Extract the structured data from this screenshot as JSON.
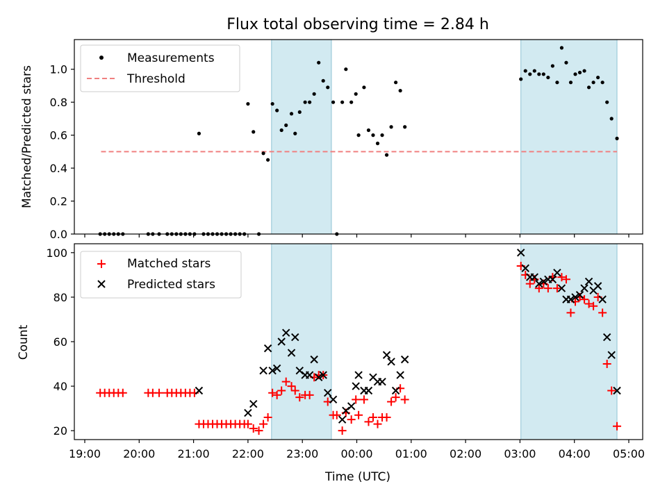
{
  "title": "Flux total observing time = 2.84 h",
  "chart_data": [
    {
      "type": "scatter",
      "panel": "top",
      "title": "Flux total observing time = 2.84 h",
      "xlabel": "",
      "ylabel": "Matched/Predicted stars",
      "xlim": [
        "19:00",
        "05:15"
      ],
      "ylim": [
        0,
        1.18
      ],
      "yticks": [
        0.0,
        0.2,
        0.4,
        0.6,
        0.8,
        1.0
      ],
      "ytick_labels": [
        "0.0",
        "0.2",
        "0.4",
        "0.6",
        "0.8",
        "1.0"
      ],
      "legend": {
        "position": "top-left",
        "entries": [
          "Measurements",
          "Threshold"
        ]
      },
      "shaded_intervals": [
        [
          "22:26",
          "23:32"
        ],
        [
          "03:01",
          "04:47"
        ]
      ],
      "threshold": {
        "name": "Threshold",
        "value": 0.5,
        "x_range": [
          "19:18",
          "04:47"
        ],
        "color": "#f08080"
      },
      "series": [
        {
          "name": "Measurements",
          "color": "#000000",
          "points": [
            [
              "19:17",
              0
            ],
            [
              "19:22",
              0
            ],
            [
              "19:27",
              0
            ],
            [
              "19:32",
              0
            ],
            [
              "19:37",
              0
            ],
            [
              "19:42",
              0
            ],
            [
              "20:10",
              0
            ],
            [
              "20:15",
              0
            ],
            [
              "20:22",
              0
            ],
            [
              "20:31",
              0
            ],
            [
              "20:36",
              0
            ],
            [
              "20:41",
              0
            ],
            [
              "20:46",
              0
            ],
            [
              "20:51",
              0
            ],
            [
              "20:56",
              0
            ],
            [
              "21:01",
              0
            ],
            [
              "21:06",
              0.61
            ],
            [
              "21:11",
              0
            ],
            [
              "21:16",
              0
            ],
            [
              "21:21",
              0
            ],
            [
              "21:26",
              0
            ],
            [
              "21:31",
              0
            ],
            [
              "21:36",
              0
            ],
            [
              "21:41",
              0
            ],
            [
              "21:46",
              0
            ],
            [
              "21:51",
              0
            ],
            [
              "21:56",
              0
            ],
            [
              "22:00",
              0.79
            ],
            [
              "22:06",
              0.62
            ],
            [
              "22:12",
              0
            ],
            [
              "22:17",
              0.49
            ],
            [
              "22:22",
              0.45
            ],
            [
              "22:27",
              0.79
            ],
            [
              "22:32",
              0.75
            ],
            [
              "22:37",
              0.63
            ],
            [
              "22:42",
              0.66
            ],
            [
              "22:48",
              0.73
            ],
            [
              "22:52",
              0.61
            ],
            [
              "22:57",
              0.74
            ],
            [
              "23:03",
              0.8
            ],
            [
              "23:08",
              0.8
            ],
            [
              "23:13",
              0.85
            ],
            [
              "23:18",
              1.04
            ],
            [
              "23:23",
              0.93
            ],
            [
              "23:28",
              0.89
            ],
            [
              "23:34",
              0.8
            ],
            [
              "23:38",
              0
            ],
            [
              "23:44",
              0.8
            ],
            [
              "23:48",
              1.0
            ],
            [
              "23:54",
              0.8
            ],
            [
              "23:59",
              0.85
            ],
            [
              "00:02",
              0.6
            ],
            [
              "00:08",
              0.89
            ],
            [
              "00:13",
              0.63
            ],
            [
              "00:18",
              0.6
            ],
            [
              "00:23",
              0.55
            ],
            [
              "00:28",
              0.6
            ],
            [
              "00:33",
              0.48
            ],
            [
              "00:38",
              0.65
            ],
            [
              "00:43",
              0.92
            ],
            [
              "00:48",
              0.87
            ],
            [
              "00:53",
              0.65
            ],
            [
              "03:01",
              0.94
            ],
            [
              "03:06",
              0.99
            ],
            [
              "03:11",
              0.97
            ],
            [
              "03:16",
              0.99
            ],
            [
              "03:21",
              0.97
            ],
            [
              "03:26",
              0.97
            ],
            [
              "03:31",
              0.95
            ],
            [
              "03:36",
              1.02
            ],
            [
              "03:41",
              0.92
            ],
            [
              "03:46",
              1.13
            ],
            [
              "03:51",
              1.04
            ],
            [
              "03:56",
              0.92
            ],
            [
              "04:01",
              0.97
            ],
            [
              "04:06",
              0.98
            ],
            [
              "04:11",
              0.99
            ],
            [
              "04:16",
              0.89
            ],
            [
              "04:21",
              0.92
            ],
            [
              "04:26",
              0.95
            ],
            [
              "04:31",
              0.92
            ],
            [
              "04:36",
              0.8
            ],
            [
              "04:41",
              0.7
            ],
            [
              "04:47",
              0.58
            ]
          ]
        }
      ]
    },
    {
      "type": "scatter",
      "panel": "bottom",
      "xlabel": "Time (UTC)",
      "ylabel": "Count",
      "xlim": [
        "19:00",
        "05:15"
      ],
      "ylim": [
        16,
        104
      ],
      "xticks": [
        "19:00",
        "20:00",
        "21:00",
        "22:00",
        "23:00",
        "00:00",
        "01:00",
        "02:00",
        "03:00",
        "04:00",
        "05:00"
      ],
      "yticks": [
        20,
        40,
        60,
        80,
        100
      ],
      "legend": {
        "position": "top-left",
        "entries": [
          "Matched stars",
          "Predicted stars"
        ]
      },
      "shaded_intervals": [
        [
          "22:26",
          "23:32"
        ],
        [
          "03:01",
          "04:47"
        ]
      ],
      "series": [
        {
          "name": "Matched stars",
          "marker": "+",
          "color": "#ff0000",
          "points": [
            [
              "19:17",
              37
            ],
            [
              "19:22",
              37
            ],
            [
              "19:27",
              37
            ],
            [
              "19:32",
              37
            ],
            [
              "19:37",
              37
            ],
            [
              "19:42",
              37
            ],
            [
              "20:10",
              37
            ],
            [
              "20:15",
              37
            ],
            [
              "20:22",
              37
            ],
            [
              "20:31",
              37
            ],
            [
              "20:36",
              37
            ],
            [
              "20:41",
              37
            ],
            [
              "20:46",
              37
            ],
            [
              "20:51",
              37
            ],
            [
              "20:56",
              37
            ],
            [
              "21:01",
              37
            ],
            [
              "21:06",
              23
            ],
            [
              "21:11",
              23
            ],
            [
              "21:16",
              23
            ],
            [
              "21:21",
              23
            ],
            [
              "21:26",
              23
            ],
            [
              "21:31",
              23
            ],
            [
              "21:36",
              23
            ],
            [
              "21:41",
              23
            ],
            [
              "21:46",
              23
            ],
            [
              "21:51",
              23
            ],
            [
              "21:56",
              23
            ],
            [
              "22:00",
              23
            ],
            [
              "22:06",
              21
            ],
            [
              "22:12",
              20
            ],
            [
              "22:17",
              23
            ],
            [
              "22:22",
              26
            ],
            [
              "22:27",
              37
            ],
            [
              "22:32",
              36
            ],
            [
              "22:37",
              38
            ],
            [
              "22:42",
              42
            ],
            [
              "22:48",
              40
            ],
            [
              "22:52",
              38
            ],
            [
              "22:57",
              35
            ],
            [
              "23:03",
              36
            ],
            [
              "23:08",
              36
            ],
            [
              "23:13",
              44
            ],
            [
              "23:18",
              45
            ],
            [
              "23:23",
              45
            ],
            [
              "23:28",
              33
            ],
            [
              "23:34",
              27
            ],
            [
              "23:38",
              27
            ],
            [
              "23:44",
              20
            ],
            [
              "23:48",
              28
            ],
            [
              "23:54",
              25
            ],
            [
              "23:59",
              34
            ],
            [
              "00:02",
              27
            ],
            [
              "00:08",
              34
            ],
            [
              "00:13",
              24
            ],
            [
              "00:18",
              26
            ],
            [
              "00:23",
              23
            ],
            [
              "00:28",
              26
            ],
            [
              "00:33",
              26
            ],
            [
              "00:38",
              33
            ],
            [
              "00:43",
              35
            ],
            [
              "00:48",
              39
            ],
            [
              "00:53",
              34
            ],
            [
              "03:01",
              94
            ],
            [
              "03:06",
              90
            ],
            [
              "03:11",
              86
            ],
            [
              "03:16",
              88
            ],
            [
              "03:21",
              84
            ],
            [
              "03:26",
              86
            ],
            [
              "03:31",
              84
            ],
            [
              "03:36",
              89
            ],
            [
              "03:41",
              84
            ],
            [
              "03:46",
              89
            ],
            [
              "03:51",
              88
            ],
            [
              "03:56",
              73
            ],
            [
              "04:01",
              78
            ],
            [
              "04:06",
              80
            ],
            [
              "04:11",
              79
            ],
            [
              "04:16",
              77
            ],
            [
              "04:21",
              76
            ],
            [
              "04:26",
              80
            ],
            [
              "04:31",
              73
            ],
            [
              "04:36",
              50
            ],
            [
              "04:41",
              38
            ],
            [
              "04:47",
              22
            ]
          ]
        },
        {
          "name": "Predicted stars",
          "marker": "x",
          "color": "#000000",
          "points": [
            [
              "21:06",
              38
            ],
            [
              "22:00",
              28
            ],
            [
              "22:06",
              32
            ],
            [
              "22:17",
              47
            ],
            [
              "22:22",
              57
            ],
            [
              "22:27",
              47
            ],
            [
              "22:32",
              48
            ],
            [
              "22:37",
              60
            ],
            [
              "22:42",
              64
            ],
            [
              "22:48",
              55
            ],
            [
              "22:52",
              62
            ],
            [
              "22:57",
              47
            ],
            [
              "23:03",
              45
            ],
            [
              "23:08",
              45
            ],
            [
              "23:13",
              52
            ],
            [
              "23:18",
              44
            ],
            [
              "23:23",
              45
            ],
            [
              "23:28",
              37
            ],
            [
              "23:34",
              34
            ],
            [
              "23:44",
              25
            ],
            [
              "23:48",
              29
            ],
            [
              "23:54",
              31
            ],
            [
              "23:59",
              40
            ],
            [
              "00:02",
              45
            ],
            [
              "00:08",
              38
            ],
            [
              "00:13",
              38
            ],
            [
              "00:18",
              44
            ],
            [
              "00:23",
              42
            ],
            [
              "00:28",
              42
            ],
            [
              "00:33",
              54
            ],
            [
              "00:38",
              51
            ],
            [
              "00:43",
              38
            ],
            [
              "00:48",
              45
            ],
            [
              "00:53",
              52
            ],
            [
              "03:01",
              100
            ],
            [
              "03:06",
              93
            ],
            [
              "03:11",
              89
            ],
            [
              "03:16",
              89
            ],
            [
              "03:21",
              86
            ],
            [
              "03:26",
              87
            ],
            [
              "03:31",
              88
            ],
            [
              "03:36",
              88
            ],
            [
              "03:41",
              91
            ],
            [
              "03:46",
              84
            ],
            [
              "03:51",
              79
            ],
            [
              "03:56",
              79
            ],
            [
              "04:01",
              80
            ],
            [
              "04:06",
              81
            ],
            [
              "04:11",
              84
            ],
            [
              "04:16",
              87
            ],
            [
              "04:21",
              83
            ],
            [
              "04:26",
              85
            ],
            [
              "04:31",
              79
            ],
            [
              "04:36",
              62
            ],
            [
              "04:41",
              54
            ],
            [
              "04:47",
              38
            ]
          ]
        }
      ]
    }
  ]
}
